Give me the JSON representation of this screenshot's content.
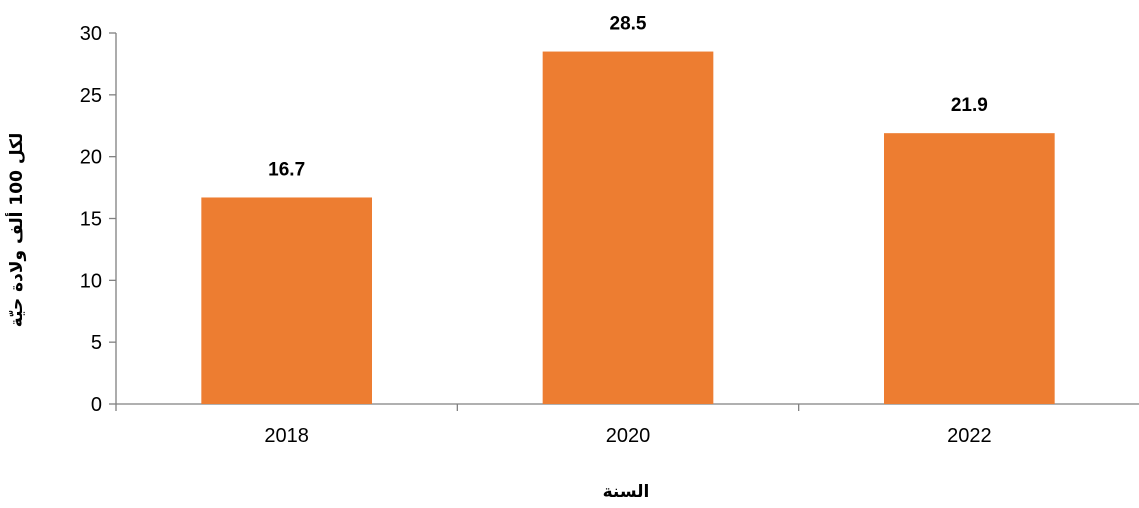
{
  "chart_data": {
    "type": "bar",
    "categories": [
      "2018",
      "2020",
      "2022"
    ],
    "values": [
      16.7,
      28.5,
      21.9
    ],
    "data_labels": [
      "16.7",
      "28.5",
      "21.9"
    ],
    "xlabel": "السنة",
    "ylabel": "لكل 100 ألف ولادة حيّة",
    "ylim": [
      0,
      30
    ],
    "yticks": [
      0,
      5,
      10,
      15,
      20,
      25,
      30
    ],
    "grid": false,
    "bar_color": "#ED7D31",
    "axis_color": "#808080"
  }
}
